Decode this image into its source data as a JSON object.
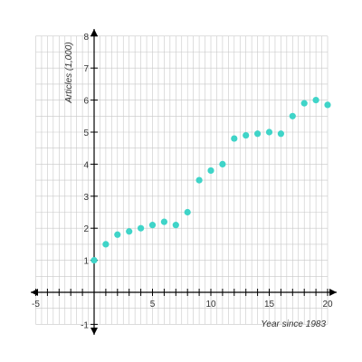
{
  "chart_data": {
    "type": "scatter",
    "title": "",
    "xlabel": "Year since 1983",
    "ylabel": "Articles (1,000)",
    "xlim": [
      -5,
      20
    ],
    "ylim": [
      -1,
      8
    ],
    "grid": true,
    "grid_minor_step": 0.5,
    "x_tick_labels": [
      "-5",
      "5",
      "10",
      "15",
      "20"
    ],
    "y_tick_labels": [
      "1",
      "2",
      "3",
      "4",
      "5",
      "6",
      "7",
      "8"
    ],
    "y_tick_neg_label": "-1",
    "colors": {
      "points": "#3fd4c8",
      "grid": "#c8c8c8",
      "axis": "#000000"
    },
    "points": [
      {
        "x": 0,
        "y": 1.0
      },
      {
        "x": 1,
        "y": 1.5
      },
      {
        "x": 2,
        "y": 1.8
      },
      {
        "x": 3,
        "y": 1.9
      },
      {
        "x": 4,
        "y": 2.0
      },
      {
        "x": 5,
        "y": 2.1
      },
      {
        "x": 6,
        "y": 2.2
      },
      {
        "x": 7,
        "y": 2.1
      },
      {
        "x": 8,
        "y": 2.5
      },
      {
        "x": 9,
        "y": 3.5
      },
      {
        "x": 10,
        "y": 3.8
      },
      {
        "x": 11,
        "y": 4.0
      },
      {
        "x": 12,
        "y": 4.8
      },
      {
        "x": 13,
        "y": 4.9
      },
      {
        "x": 14,
        "y": 4.95
      },
      {
        "x": 15,
        "y": 5.0
      },
      {
        "x": 16,
        "y": 4.95
      },
      {
        "x": 17,
        "y": 5.5
      },
      {
        "x": 18,
        "y": 5.9
      },
      {
        "x": 19,
        "y": 6.0
      },
      {
        "x": 20,
        "y": 5.85
      }
    ]
  }
}
